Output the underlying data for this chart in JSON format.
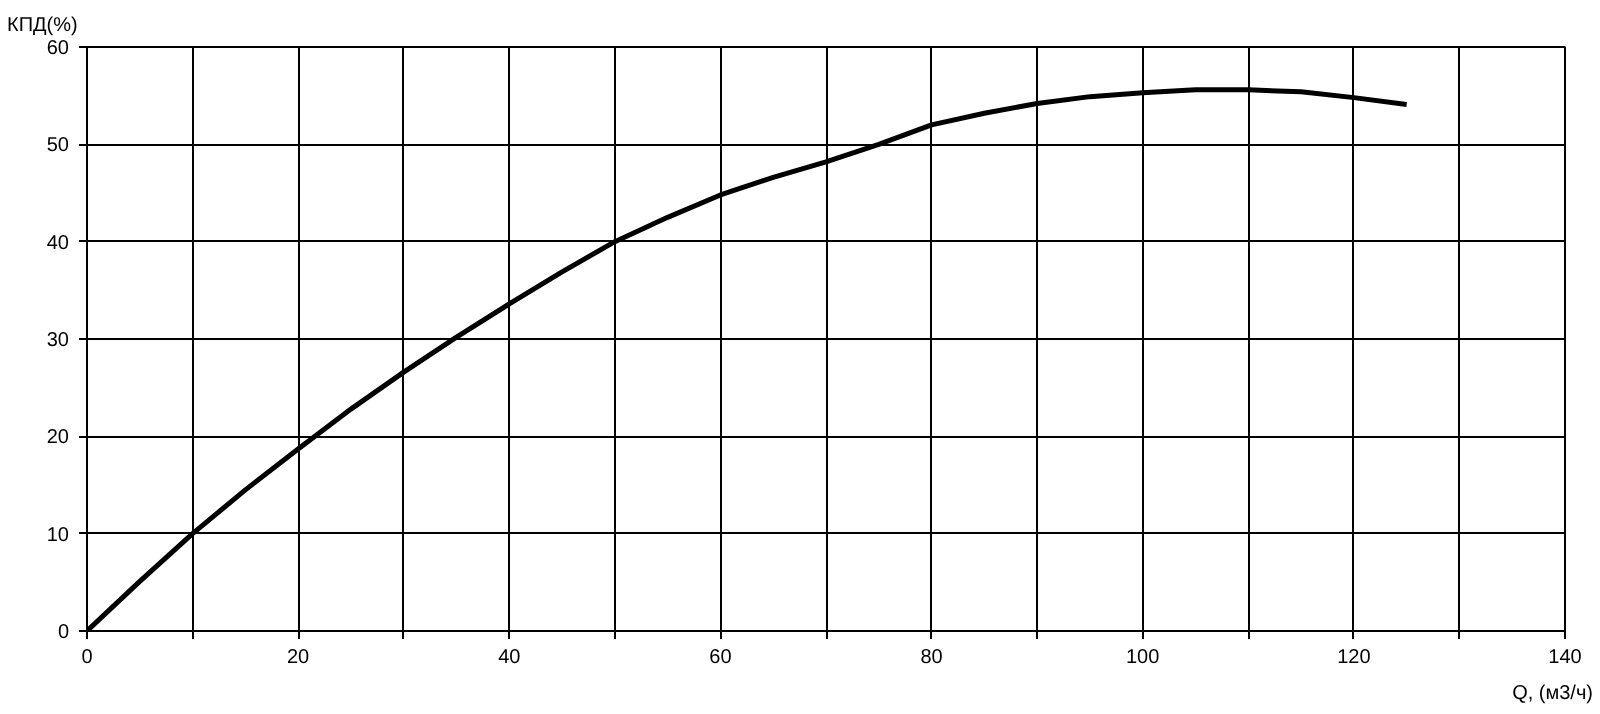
{
  "chart_data": {
    "type": "line",
    "xlabel": "Q, (м3/ч)",
    "ylabel": "КПД(%)",
    "x": [
      0,
      5,
      10,
      15,
      20,
      25,
      30,
      35,
      40,
      45,
      50,
      55,
      60,
      65,
      70,
      75,
      80,
      85,
      90,
      95,
      100,
      105,
      110,
      115,
      120,
      125
    ],
    "series": [
      {
        "color": "#000000",
        "values": [
          0,
          5.1,
          10,
          14.5,
          18.7,
          22.8,
          26.6,
          30.2,
          33.6,
          36.9,
          40,
          42.5,
          44.8,
          46.6,
          48.2,
          50,
          52,
          53.2,
          54.2,
          54.9,
          55.3,
          55.6,
          55.6,
          55.4,
          54.8,
          54.1
        ]
      }
    ],
    "xlim": [
      0,
      140
    ],
    "ylim": [
      0,
      60
    ],
    "xticks": [
      0,
      {
        "value": 10,
        "label": null
      },
      20,
      {
        "value": 30,
        "label": null
      },
      40,
      {
        "value": 50,
        "label": null
      },
      60,
      {
        "value": 70,
        "label": null
      },
      80,
      {
        "value": 90,
        "label": null
      },
      100,
      {
        "value": 110,
        "label": null
      },
      120,
      {
        "value": 130,
        "label": null
      },
      140
    ],
    "yticks": [
      0,
      10,
      20,
      30,
      40,
      50,
      60
    ],
    "grid": true,
    "marker": "none",
    "line_style": "solid"
  }
}
